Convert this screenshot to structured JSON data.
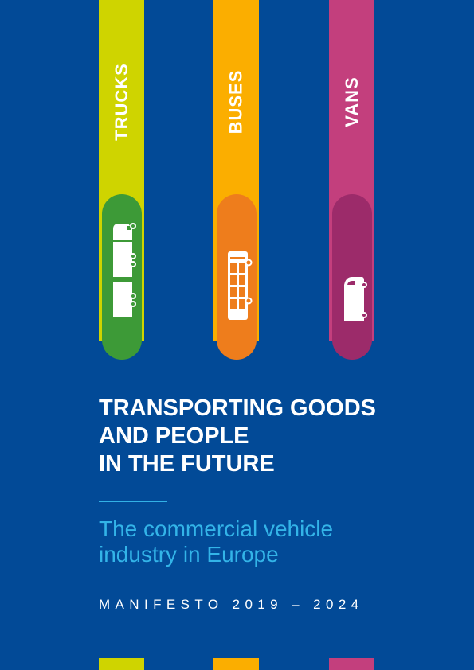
{
  "stripes": [
    {
      "label": "TRUCKS",
      "color": "#cfd400",
      "pill_color": "#3d9a37",
      "icon": "truck-icon"
    },
    {
      "label": "BUSES",
      "color": "#fbae00",
      "pill_color": "#ee7d1c",
      "icon": "bus-icon"
    },
    {
      "label": "VANS",
      "color": "#c33f7d",
      "pill_color": "#9c2b6a",
      "icon": "van-icon"
    }
  ],
  "title_lines": [
    "TRANSPORTING GOODS",
    "AND PEOPLE",
    "IN THE FUTURE"
  ],
  "subtitle_lines": [
    "The commercial vehicle",
    "industry in Europe"
  ],
  "manifesto": "MANIFESTO  2019 – 2024",
  "colors": {
    "background": "#024a97",
    "rule": "#32b1e6",
    "subtitle": "#33b4e8"
  }
}
